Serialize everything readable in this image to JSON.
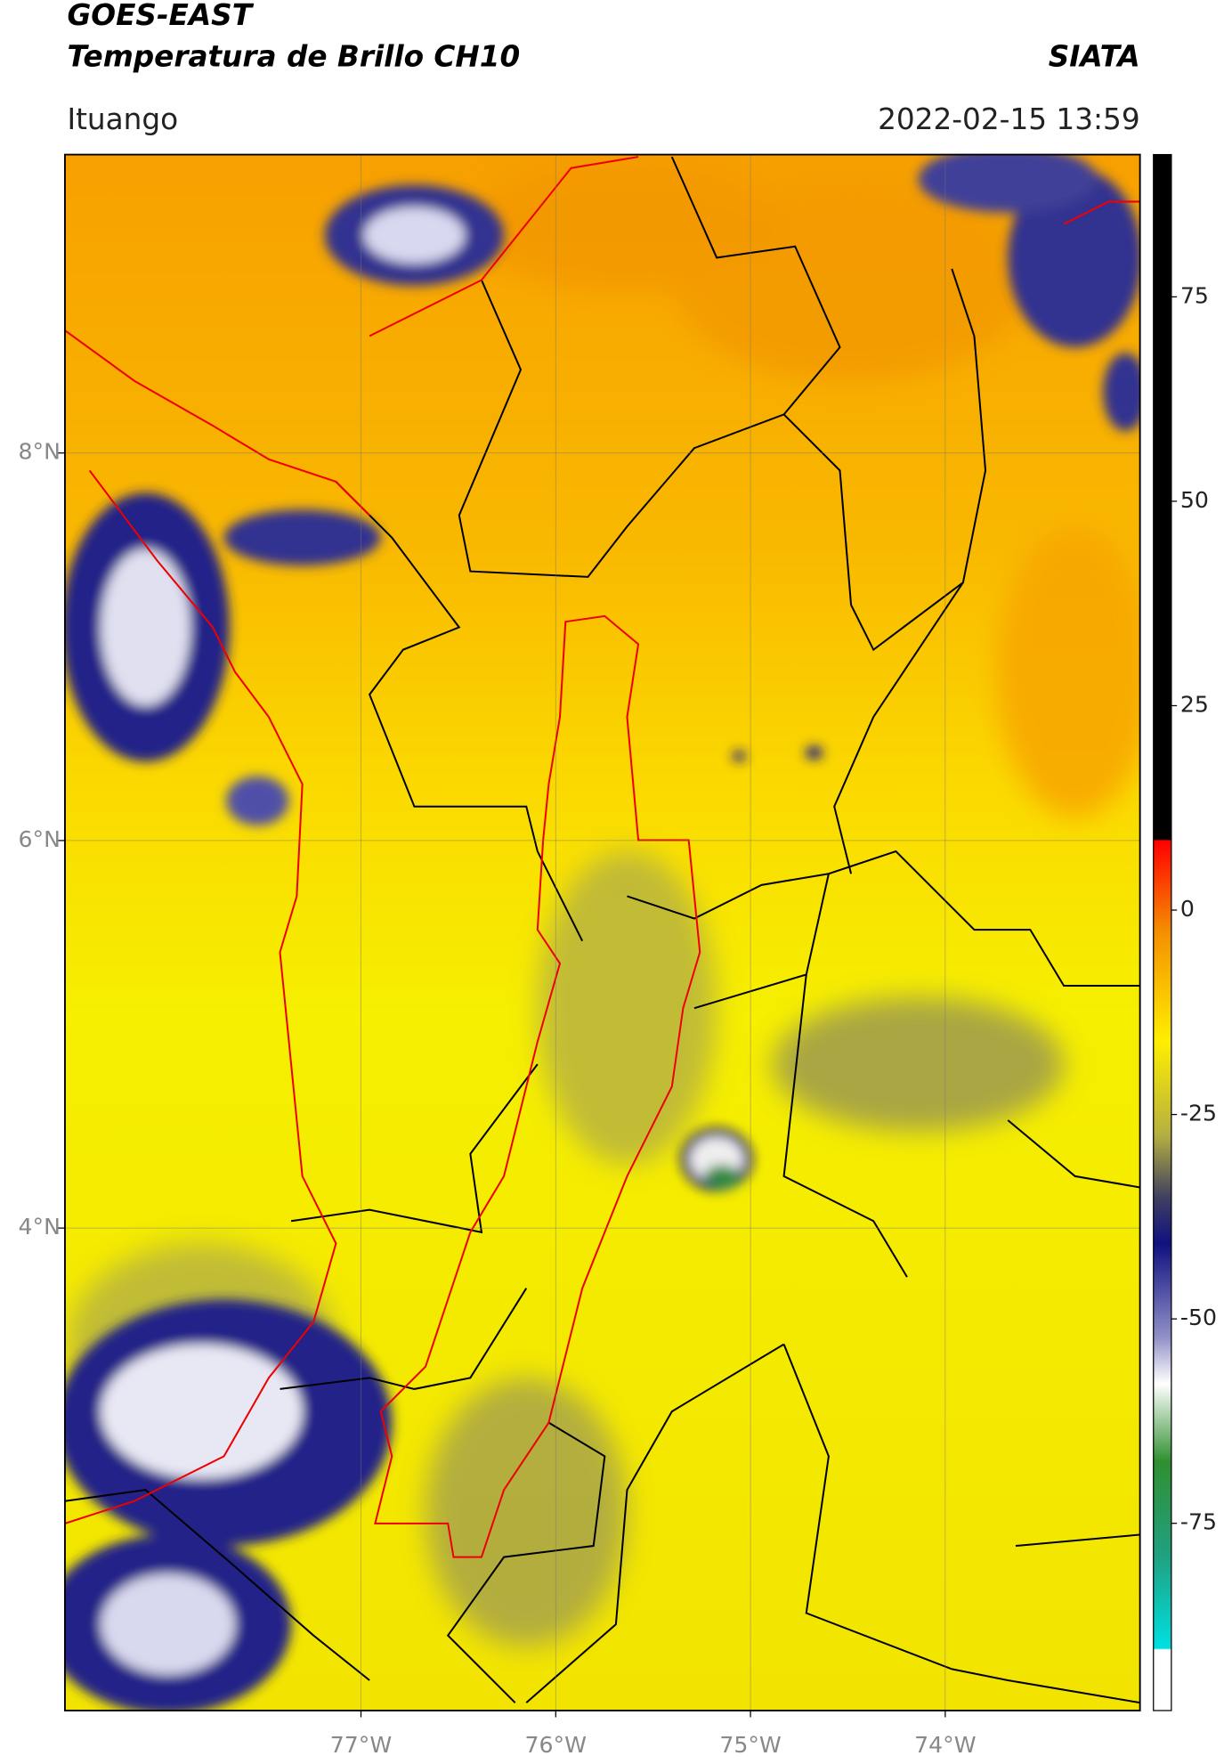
{
  "header": {
    "title": "GOES-EAST",
    "subtitle": "Temperatura de Brillo CH10",
    "brand": "SIATA",
    "region": "Ituango",
    "datetime": "2022-02-15 13:59"
  },
  "map": {
    "lat_lim": [
      1.51,
      9.54
    ],
    "lon_lim": [
      -78.52,
      -73.0
    ],
    "grid": true,
    "lat_ticks": [
      {
        "value": 8,
        "label": "8°N"
      },
      {
        "value": 6,
        "label": "6°N"
      },
      {
        "value": 4,
        "label": "4°N"
      }
    ],
    "lon_ticks": [
      {
        "value": -77,
        "label": "77°W"
      },
      {
        "value": -76,
        "label": "76°W"
      },
      {
        "value": -75,
        "label": "75°W"
      },
      {
        "value": -74,
        "label": "74°W"
      }
    ]
  },
  "colorbar": {
    "lim": [
      -97.9,
      92.4
    ],
    "ticks": [
      75,
      50,
      25,
      0,
      -25,
      -50,
      -75
    ]
  }
}
